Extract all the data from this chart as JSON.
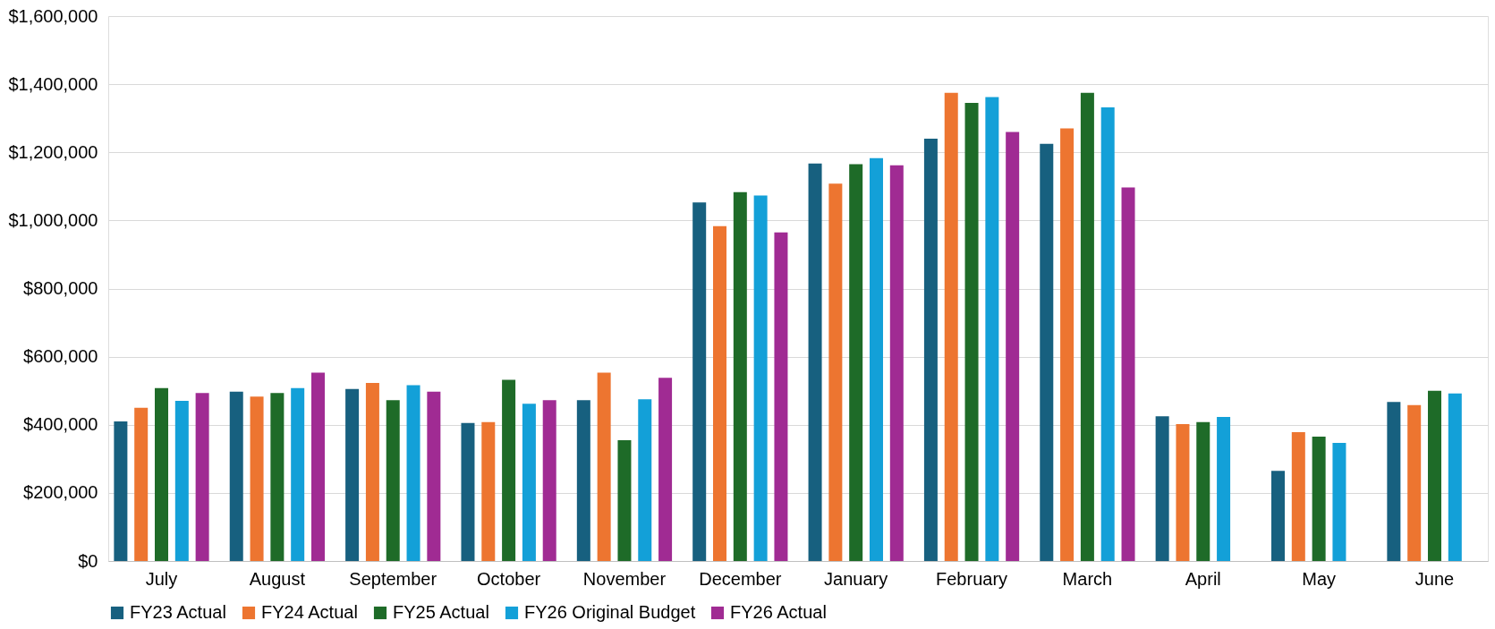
{
  "chart_data": {
    "type": "bar",
    "categories": [
      "July",
      "August",
      "September",
      "October",
      "November",
      "December",
      "January",
      "February",
      "March",
      "April",
      "May",
      "June"
    ],
    "series": [
      {
        "name": "FY23 Actual",
        "color": "#17607f",
        "values": [
          410000,
          497000,
          505000,
          405000,
          472000,
          1053000,
          1167000,
          1240000,
          1225000,
          425000,
          265000,
          467000
        ]
      },
      {
        "name": "FY24 Actual",
        "color": "#ed7530",
        "values": [
          450000,
          483000,
          523000,
          408000,
          553000,
          983000,
          1108000,
          1375000,
          1270000,
          402000,
          378000,
          458000
        ]
      },
      {
        "name": "FY25 Actual",
        "color": "#1e6b28",
        "values": [
          508000,
          493000,
          472000,
          532000,
          355000,
          1083000,
          1165000,
          1345000,
          1375000,
          408000,
          365000,
          500000
        ]
      },
      {
        "name": "FY26 Original Budget",
        "color": "#13a0d8",
        "values": [
          470000,
          508000,
          516000,
          462000,
          475000,
          1073000,
          1183000,
          1362000,
          1332000,
          423000,
          347000,
          492000
        ]
      },
      {
        "name": "FY26 Actual",
        "color": "#a02b93",
        "values": [
          493000,
          553000,
          497000,
          472000,
          538000,
          965000,
          1162000,
          1260000,
          1097000,
          null,
          null,
          null
        ]
      }
    ],
    "ylim": [
      0,
      1600000
    ],
    "yticks": [
      {
        "value": 0,
        "label": "$0"
      },
      {
        "value": 200000,
        "label": "$200,000"
      },
      {
        "value": 400000,
        "label": "$400,000"
      },
      {
        "value": 600000,
        "label": "$600,000"
      },
      {
        "value": 800000,
        "label": "$800,000"
      },
      {
        "value": 1000000,
        "label": "$1,000,000"
      },
      {
        "value": 1200000,
        "label": "$1,200,000"
      },
      {
        "value": 1400000,
        "label": "$1,400,000"
      },
      {
        "value": 1600000,
        "label": "$1,600,000"
      }
    ],
    "grid": "y",
    "legend": "bottom"
  }
}
